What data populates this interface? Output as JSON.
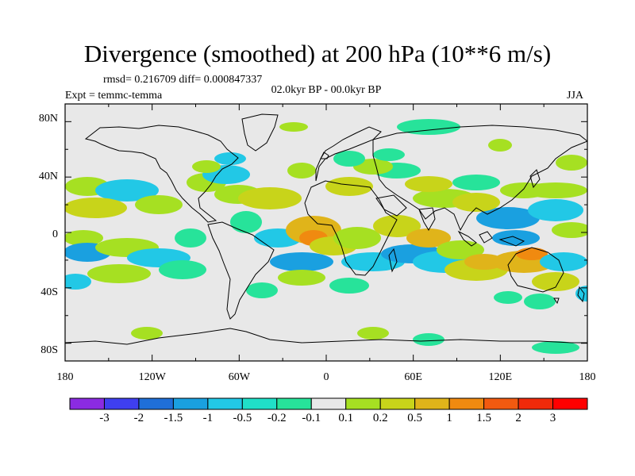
{
  "title": "Divergence (smoothed) at 200 hPa (10**6 m/s)",
  "stats": "rmsd= 0.216709  diff= 0.000847337",
  "experiment": "Expt = temmc-temma",
  "period": "02.0kyr BP - 00.0kyr BP",
  "season": "JJA",
  "y_ticks": [
    "80N",
    "40N",
    "0",
    "40S",
    "80S"
  ],
  "x_ticks": [
    "180",
    "120W",
    "60W",
    "0",
    "60E",
    "120E",
    "180"
  ],
  "colorbar": {
    "labels": [
      "-3",
      "-2",
      "-1.5",
      "-1",
      "-0.5",
      "-0.2",
      "-0.1",
      "0.1",
      "0.2",
      "0.5",
      "1",
      "1.5",
      "2",
      "3"
    ],
    "colors": [
      "#8b2be2",
      "#3f3ff0",
      "#1f6fd8",
      "#1aa0e0",
      "#22c8e6",
      "#20e0c8",
      "#27e39a",
      "#e8e8e8",
      "#a6e022",
      "#c8d41a",
      "#e0b41a",
      "#f08a10",
      "#f25a10",
      "#f02a0a",
      "#ff0000"
    ]
  },
  "colors": {
    "background": "#e8e8e8",
    "neg_weak": "#27e39a",
    "neg_mid": "#22c8e6",
    "neg_strong": "#1aa0e0",
    "pos_weak": "#a6e022",
    "pos_mid": "#c8d41a",
    "pos_strong": "#e0b41a",
    "pos_max": "#f08a10"
  }
}
